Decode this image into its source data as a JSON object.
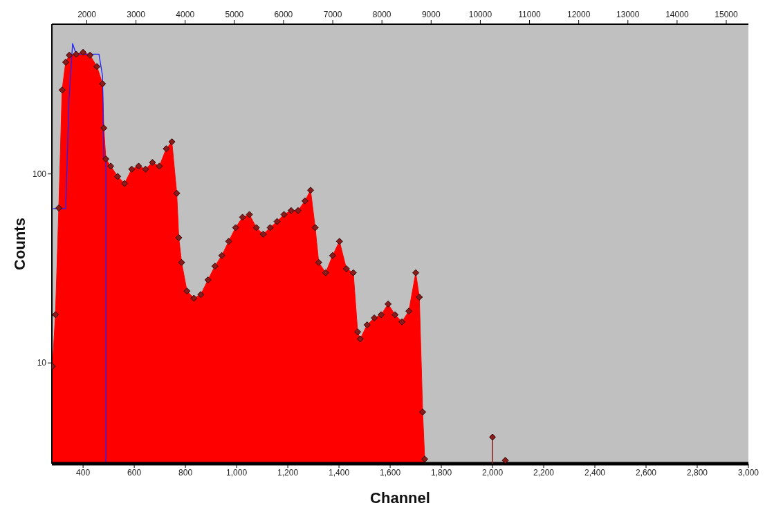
{
  "chart_data": {
    "type": "area",
    "xlabel": "Channel",
    "ylabel": "Counts",
    "log": "y",
    "grid": false,
    "xlim": [
      278,
      3000
    ],
    "xticks": [
      400,
      600,
      800,
      {
        "value": 1000,
        "label": "1,000"
      },
      {
        "value": 1200,
        "label": "1,200"
      },
      {
        "value": 1400,
        "label": "1,400"
      },
      {
        "value": 1600,
        "label": "1,600"
      },
      {
        "value": 1800,
        "label": "1,800"
      },
      {
        "value": 2000,
        "label": "2,000"
      },
      {
        "value": 2200,
        "label": "2,200"
      },
      {
        "value": 2400,
        "label": "2,400"
      },
      {
        "value": 2600,
        "label": "2,600"
      },
      {
        "value": 2800,
        "label": "2,800"
      },
      {
        "value": 3000,
        "label": "3,000"
      }
    ],
    "x2lim": [
      1290,
      15450
    ],
    "x2ticks": [
      2000,
      3000,
      4000,
      5000,
      6000,
      7000,
      8000,
      9000,
      10000,
      11000,
      12000,
      13000,
      14000,
      15000
    ],
    "ylim": [
      2.93,
      620
    ],
    "yticks": [
      10,
      100
    ],
    "series": [
      {
        "type": "area",
        "color": "#ff0000",
        "marker": "diamond",
        "x": [
          280,
          292,
          305,
          318,
          332,
          346,
          373,
          400,
          427,
          454,
          476,
          481,
          489,
          508,
          535,
          562,
          590,
          617,
          644,
          671,
          698,
          725,
          747,
          766,
          774,
          785,
          806,
          833,
          860,
          888,
          915,
          942,
          969,
          996,
          1023,
          1050,
          1077,
          1104,
          1131,
          1158,
          1185,
          1213,
          1240,
          1267,
          1289,
          1307,
          1321,
          1348,
          1375,
          1402,
          1429,
          1456,
          1473,
          1483,
          1510,
          1538,
          1565,
          1592,
          1619,
          1646,
          1673,
          1700,
          1714,
          1727,
          1735
        ],
        "values": [
          9.6,
          18,
          66,
          278,
          390,
          425,
          430,
          440,
          425,
          370,
          300,
          175,
          120,
          110,
          97,
          89,
          106,
          110,
          106,
          115,
          110,
          136,
          148,
          79,
          46,
          34,
          24,
          22,
          23,
          27.5,
          32.5,
          37,
          44,
          52,
          59,
          61,
          52,
          48,
          52,
          56,
          61,
          64,
          64,
          72,
          82,
          52,
          34,
          30,
          37,
          44,
          31.5,
          30,
          14.6,
          13.4,
          15.9,
          17.3,
          18,
          20.5,
          18,
          16.5,
          18.8,
          30,
          22.3,
          5.5,
          3.1
        ]
      },
      {
        "type": "lollipop",
        "color": "#8a1c1c",
        "marker": "diamond",
        "x": [
          2000,
          2050
        ],
        "values": [
          4.05,
          3.05
        ]
      },
      {
        "type": "line",
        "color": "#2020ff",
        "marker": "none",
        "x": [
          282,
          332,
          345,
          359,
          373,
          400,
          430,
          462,
          476,
          481,
          489,
          489
        ],
        "values": [
          65.5,
          65.5,
          250,
          490,
          430,
          430,
          430,
          430,
          330,
          120,
          120,
          2.93
        ]
      }
    ]
  }
}
